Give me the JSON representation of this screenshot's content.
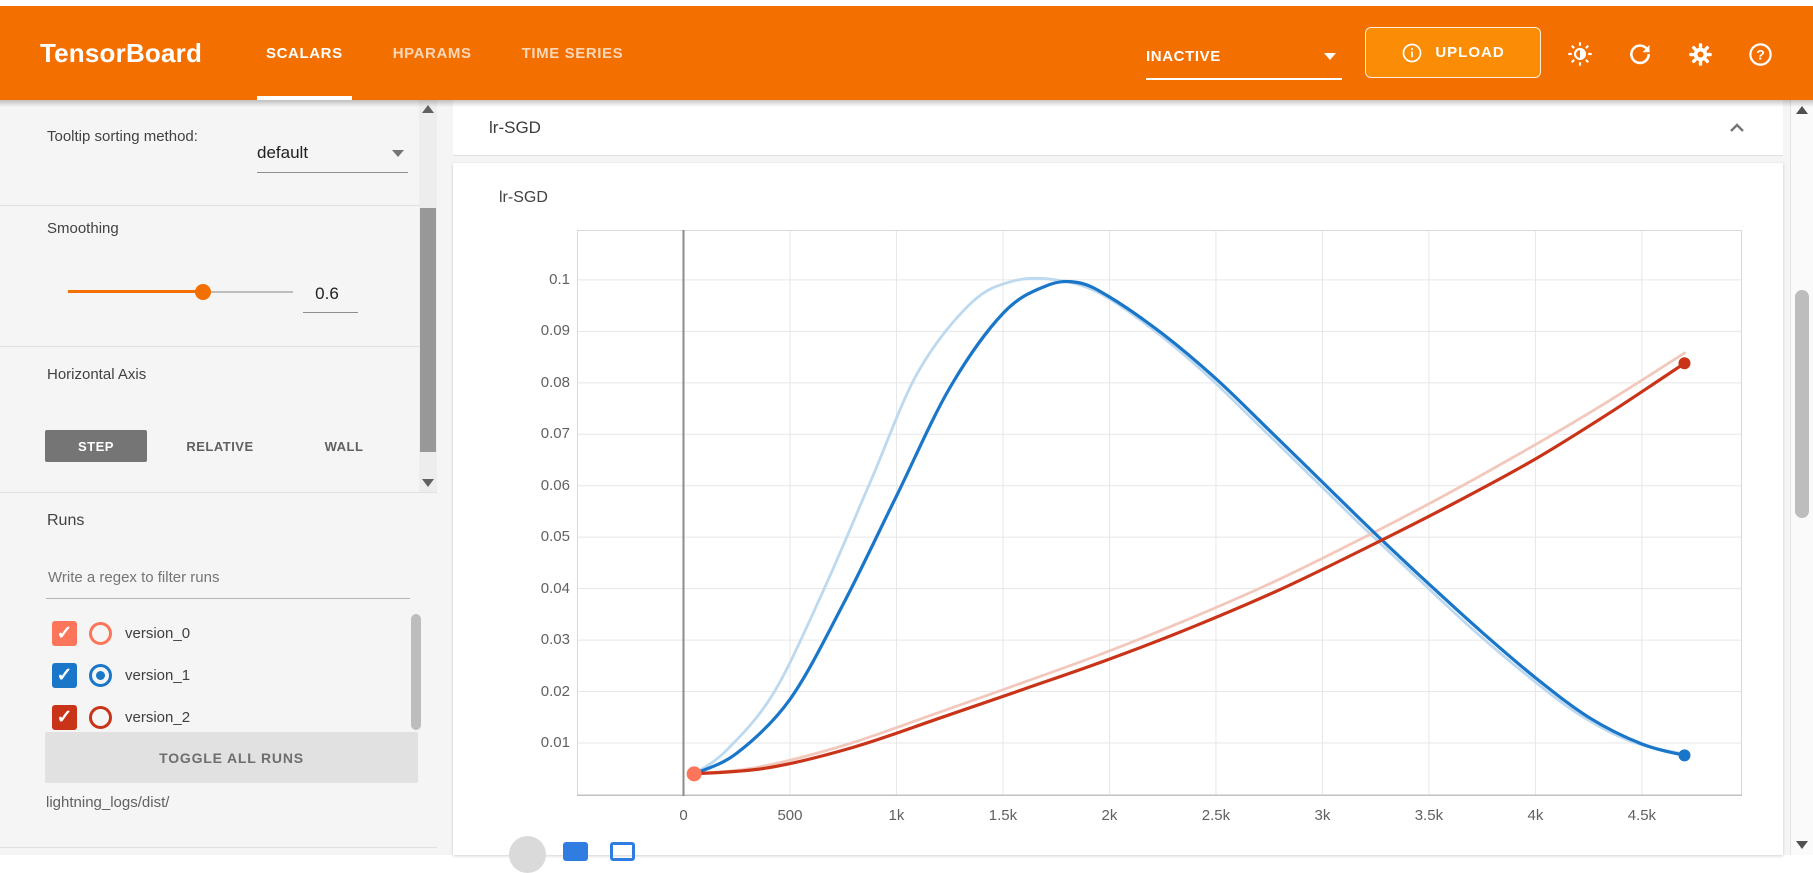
{
  "header": {
    "title": "TensorBoard",
    "tabs": [
      {
        "label": "SCALARS",
        "active": true
      },
      {
        "label": "HPARAMS",
        "active": false
      },
      {
        "label": "TIME SERIES",
        "active": false
      }
    ],
    "status_dropdown": "INACTIVE",
    "upload_label": "UPLOAD",
    "icons": [
      "info-icon",
      "brightness-icon",
      "refresh-icon",
      "settings-icon",
      "help-icon"
    ],
    "colors": {
      "bar": "#f36f00",
      "upload_bg": "#fa8d05"
    }
  },
  "sidebar": {
    "tooltip_sorting_label": "Tooltip sorting method:",
    "tooltip_sorting_value": "default",
    "smoothing_label": "Smoothing",
    "smoothing_value": "0.6",
    "horizontal_axis_label": "Horizontal Axis",
    "axis_options": [
      "STEP",
      "RELATIVE",
      "WALL"
    ],
    "axis_selected": "STEP",
    "runs_label": "Runs",
    "filter_placeholder": "Write a regex to filter runs",
    "runs": [
      {
        "name": "version_0",
        "color": "#fa755a",
        "checked": true,
        "radio_selected": false
      },
      {
        "name": "version_1",
        "color": "#1976c8",
        "checked": true,
        "radio_selected": true
      },
      {
        "name": "version_2",
        "color": "#c93418",
        "checked": true,
        "radio_selected": false
      }
    ],
    "toggle_all_label": "TOGGLE ALL RUNS",
    "logdir": "lightning_logs/dist/"
  },
  "main": {
    "section_title": "lr-SGD"
  },
  "chart_data": {
    "type": "line",
    "title": "lr-SGD",
    "xlim": [
      -500,
      4970
    ],
    "ylim": [
      -0.0003,
      0.1097
    ],
    "grid": true,
    "smoothing": 0.6,
    "x_ticks": [
      {
        "v": 0,
        "label": "0"
      },
      {
        "v": 500,
        "label": "500"
      },
      {
        "v": 1000,
        "label": "1k"
      },
      {
        "v": 1500,
        "label": "1.5k"
      },
      {
        "v": 2000,
        "label": "2k"
      },
      {
        "v": 2500,
        "label": "2.5k"
      },
      {
        "v": 3000,
        "label": "3k"
      },
      {
        "v": 3500,
        "label": "3.5k"
      },
      {
        "v": 4000,
        "label": "4k"
      },
      {
        "v": 4500,
        "label": "4.5k"
      }
    ],
    "y_ticks": [
      {
        "v": 0.01,
        "label": "0.01"
      },
      {
        "v": 0.02,
        "label": "0.02"
      },
      {
        "v": 0.03,
        "label": "0.03"
      },
      {
        "v": 0.04,
        "label": "0.04"
      },
      {
        "v": 0.05,
        "label": "0.05"
      },
      {
        "v": 0.06,
        "label": "0.06"
      },
      {
        "v": 0.07,
        "label": "0.07"
      },
      {
        "v": 0.08,
        "label": "0.08"
      },
      {
        "v": 0.09,
        "label": "0.09"
      },
      {
        "v": 0.1,
        "label": "0.1"
      }
    ],
    "zero_line_x": 0,
    "series": [
      {
        "name": "version_0",
        "color": "#fa755a",
        "smoothed": [
          [
            50,
            0.004
          ]
        ],
        "raw": [
          [
            50,
            0.004
          ]
        ],
        "start_marker": true
      },
      {
        "name": "version_1",
        "color": "#1976c8",
        "light_color": "#bdd9ef",
        "raw": [
          [
            50,
            0.004
          ],
          [
            200,
            0.0085
          ],
          [
            420,
            0.0195
          ],
          [
            650,
            0.039
          ],
          [
            880,
            0.061
          ],
          [
            1100,
            0.082
          ],
          [
            1350,
            0.0955
          ],
          [
            1550,
            0.0998
          ],
          [
            1750,
            0.1
          ],
          [
            1950,
            0.0975
          ],
          [
            2200,
            0.0905
          ],
          [
            2450,
            0.0818
          ],
          [
            2700,
            0.0718
          ],
          [
            2950,
            0.0617
          ],
          [
            3200,
            0.0516
          ],
          [
            3450,
            0.0419
          ],
          [
            3700,
            0.0323
          ],
          [
            3950,
            0.0235
          ],
          [
            4200,
            0.0157
          ],
          [
            4450,
            0.0103
          ],
          [
            4700,
            0.0078
          ]
        ],
        "smoothed": [
          [
            50,
            0.004
          ],
          [
            250,
            0.008
          ],
          [
            500,
            0.0185
          ],
          [
            750,
            0.037
          ],
          [
            1000,
            0.058
          ],
          [
            1250,
            0.079
          ],
          [
            1500,
            0.0935
          ],
          [
            1700,
            0.0988
          ],
          [
            1850,
            0.0995
          ],
          [
            2000,
            0.0967
          ],
          [
            2250,
            0.0895
          ],
          [
            2500,
            0.0808
          ],
          [
            2750,
            0.0708
          ],
          [
            3000,
            0.0607
          ],
          [
            3250,
            0.0506
          ],
          [
            3500,
            0.0409
          ],
          [
            3750,
            0.0315
          ],
          [
            4000,
            0.0227
          ],
          [
            4250,
            0.015
          ],
          [
            4500,
            0.0098
          ],
          [
            4700,
            0.0076
          ]
        ],
        "end_marker": true
      },
      {
        "name": "version_2",
        "color": "#c93418",
        "light_color": "#f3c8bc",
        "raw": [
          [
            50,
            0.004
          ],
          [
            350,
            0.0053
          ],
          [
            750,
            0.0095
          ],
          [
            1150,
            0.0152
          ],
          [
            1550,
            0.0211
          ],
          [
            1950,
            0.0271
          ],
          [
            2350,
            0.0337
          ],
          [
            2750,
            0.0409
          ],
          [
            3150,
            0.049
          ],
          [
            3550,
            0.0576
          ],
          [
            3950,
            0.0668
          ],
          [
            4330,
            0.0761
          ],
          [
            4700,
            0.0858
          ]
        ],
        "smoothed": [
          [
            50,
            0.004
          ],
          [
            400,
            0.0052
          ],
          [
            800,
            0.0092
          ],
          [
            1200,
            0.0148
          ],
          [
            1600,
            0.0205
          ],
          [
            2000,
            0.0263
          ],
          [
            2400,
            0.0327
          ],
          [
            2800,
            0.0398
          ],
          [
            3200,
            0.0478
          ],
          [
            3600,
            0.0562
          ],
          [
            4000,
            0.0652
          ],
          [
            4350,
            0.0742
          ],
          [
            4700,
            0.0838
          ]
        ],
        "end_marker": true
      }
    ]
  }
}
